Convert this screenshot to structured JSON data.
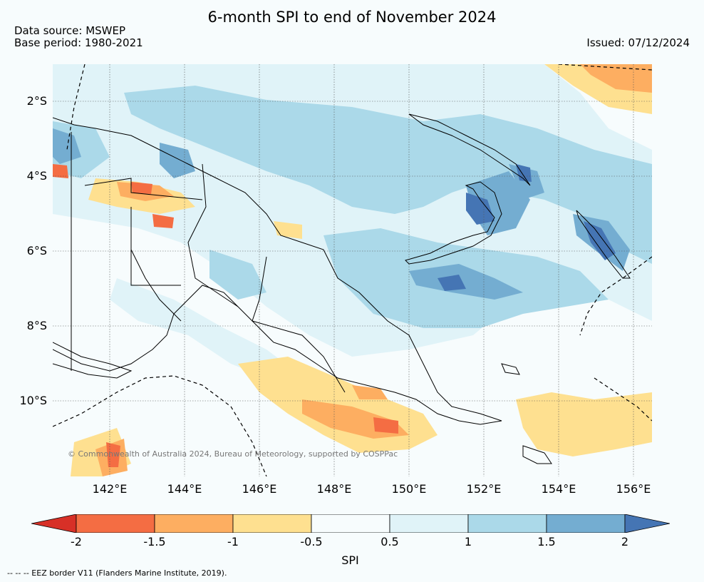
{
  "header": {
    "title": "6-month SPI to end of November 2024",
    "data_source": "Data source: MSWEP",
    "base_period": "Base period: 1980-2021",
    "issued": "Issued: 07/12/2024"
  },
  "map": {
    "lat_labels": [
      "2°S",
      "4°S",
      "6°S",
      "8°S",
      "10°S"
    ],
    "lon_labels": [
      "142°E",
      "144°E",
      "146°E",
      "148°E",
      "150°E",
      "152°E",
      "154°E",
      "156°E"
    ],
    "copyright": "© Commonwealth of Australia 2024, Bureau of Meteorology, supported by COSPPac"
  },
  "colorbar": {
    "label": "SPI",
    "ticks": [
      "-2",
      "-1.5",
      "-1",
      "-0.5",
      "0.5",
      "1",
      "1.5",
      "2"
    ],
    "colors": [
      "#d73027",
      "#f46d43",
      "#fdae61",
      "#fee090",
      "#f7fcfd",
      "#e0f3f8",
      "#abd9e9",
      "#74add1",
      "#4575b4"
    ]
  },
  "footer": {
    "eez_note": "--  --  -- EEZ border V11 (Flanders Marine Institute, 2019)."
  }
}
